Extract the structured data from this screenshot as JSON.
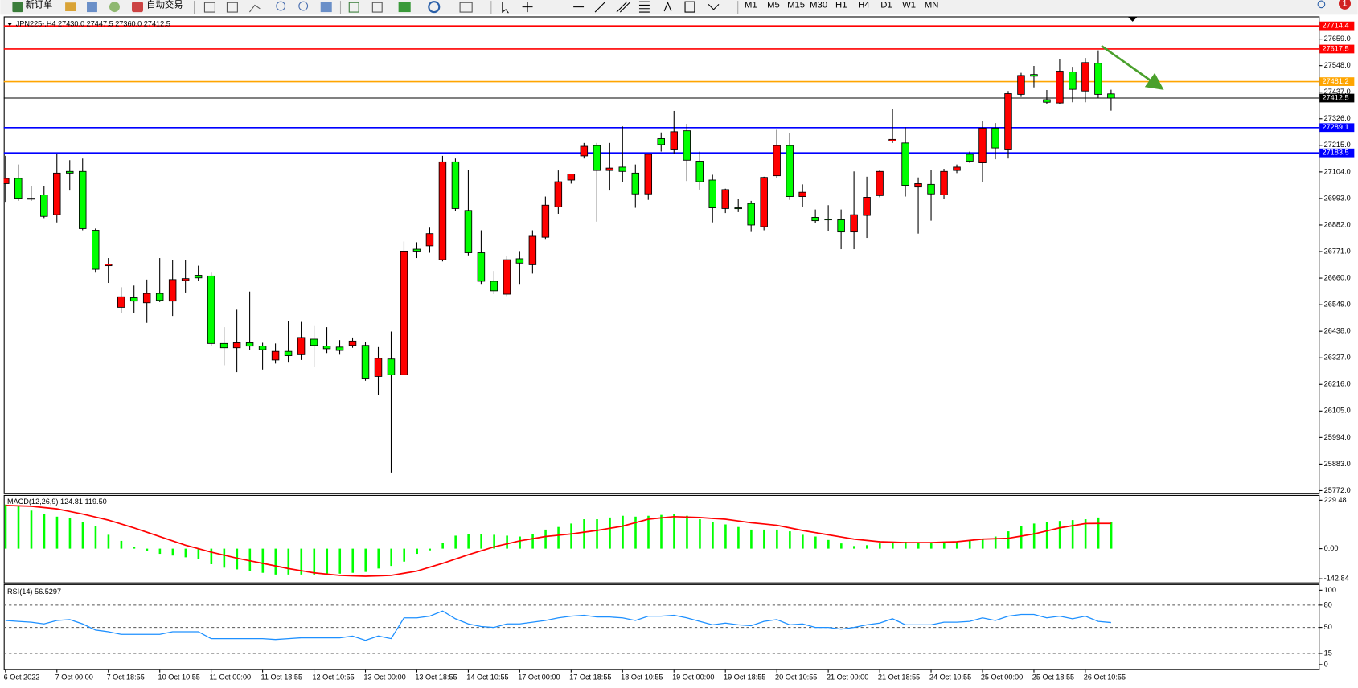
{
  "toolbar": {
    "new_order": "新订单",
    "auto_trading": "自动交易",
    "timeframes": [
      "M1",
      "M5",
      "M15",
      "M30",
      "H1",
      "H4",
      "D1",
      "W1",
      "MN"
    ],
    "badge": "1"
  },
  "chart_data": [
    {
      "type": "candlestick",
      "title": "JPN225-,H4  27430.0 27447.5 27360.0 27412.5",
      "categories": [
        "6 Oct 2022",
        null,
        null,
        null,
        "7 Oct 00:00",
        null,
        null,
        null,
        "7 Oct 18:55",
        null,
        null,
        null,
        "10 Oct 10:55",
        null,
        null,
        null,
        "11 Oct 00:00",
        null,
        null,
        null,
        "11 Oct 18:55",
        null,
        null,
        null,
        "12 Oct 10:55",
        null,
        null,
        null,
        "13 Oct 00:00",
        null,
        null,
        null,
        "13 Oct 18:55",
        null,
        null,
        null,
        "14 Oct 10:55",
        null,
        null,
        null,
        "17 Oct 00:00",
        null,
        null,
        null,
        "17 Oct 18:55",
        null,
        null,
        null,
        "18 Oct 10:55",
        null,
        null,
        null,
        "19 Oct 00:00",
        null,
        null,
        null,
        "19 Oct 18:55",
        null,
        null,
        null,
        "20 Oct 10:55",
        null,
        null,
        null,
        "21 Oct 00:00",
        null,
        null,
        null,
        "21 Oct 18:55",
        null,
        null,
        null,
        "24 Oct 10:55",
        null,
        null,
        null,
        "25 Oct 00:00",
        null,
        null,
        null,
        "25 Oct 18:55",
        null,
        null,
        null,
        "26 Oct 10:55",
        null,
        null
      ],
      "open": [
        27055,
        27077,
        26994,
        27008,
        26925,
        27106,
        27106,
        26860,
        26712,
        26538,
        26578,
        26557,
        26596,
        26564,
        26650,
        26672,
        26669,
        26387,
        26369,
        26390,
        26376,
        26318,
        26354,
        26340,
        26405,
        26376,
        26372,
        26379,
        26379,
        26249,
        26322,
        26256,
        26781,
        26795,
        26737,
        27146,
        26943,
        26766,
        26647,
        26593,
        26741,
        26716,
        26831,
        26958,
        27070,
        27171,
        27214,
        27110,
        27124,
        27099,
        27012,
        27243,
        27196,
        27276,
        27149,
        27070,
        26951,
        26954,
        26972,
        26875,
        27088,
        27214,
        27001,
        26914,
        26907,
        26904,
        26853,
        26922,
        27005,
        27233,
        27225,
        27041,
        27052,
        27008,
        27110,
        27178,
        27142,
        27287,
        27196,
        27428,
        27511,
        27406,
        27392,
        27522,
        27442,
        27558,
        27430
      ],
      "high": [
        27171,
        27135,
        27044,
        27044,
        27178,
        27153,
        27160,
        26867,
        26744,
        26622,
        26629,
        26654,
        26744,
        26737,
        26737,
        26712,
        26683,
        26455,
        26528,
        26604,
        26390,
        26387,
        26481,
        26477,
        26463,
        26455,
        26401,
        26412,
        26394,
        26372,
        26437,
        26813,
        26810,
        26871,
        27171,
        27160,
        27113,
        26860,
        26690,
        26752,
        26773,
        26860,
        27001,
        27110,
        27095,
        27225,
        27225,
        27225,
        27294,
        27135,
        27178,
        27269,
        27359,
        27305,
        27189,
        27092,
        27034,
        26990,
        26983,
        27084,
        27280,
        27265,
        27052,
        26947,
        26965,
        26947,
        27106,
        27084,
        27110,
        27366,
        27290,
        27081,
        27113,
        27117,
        27135,
        27189,
        27316,
        27308,
        27442,
        27518,
        27547,
        27446,
        27576,
        27543,
        27580,
        27612,
        27447.5
      ],
      "low": [
        26979,
        26983,
        26983,
        26911,
        26893,
        27026,
        26860,
        26683,
        26640,
        26513,
        26513,
        26473,
        26560,
        26502,
        26600,
        26647,
        26376,
        26296,
        26267,
        26358,
        26278,
        26303,
        26307,
        26318,
        26289,
        26347,
        26340,
        26369,
        26231,
        26170,
        25848,
        26256,
        26744,
        26766,
        26730,
        26940,
        26755,
        26636,
        26593,
        26585,
        26636,
        26679,
        26824,
        26929,
        27055,
        27160,
        26896,
        27026,
        27063,
        26954,
        26987,
        27189,
        27178,
        27066,
        27030,
        26893,
        26932,
        26936,
        26853,
        26860,
        27077,
        26987,
        26958,
        26889,
        26857,
        26781,
        26781,
        26828,
        26998,
        27225,
        27001,
        26846,
        26900,
        26990,
        27099,
        27142,
        27063,
        27157,
        27160,
        27417,
        27457,
        27388,
        27388,
        27395,
        27395,
        27413,
        27360
      ],
      "close": [
        27077,
        26994,
        26990,
        26918,
        27099,
        27099,
        26867,
        26697,
        26719,
        26582,
        26564,
        26596,
        26567,
        26654,
        26658,
        26661,
        26387,
        26369,
        26390,
        26376,
        26361,
        26354,
        26336,
        26412,
        26379,
        26365,
        26358,
        26397,
        26242,
        26325,
        26256,
        26773,
        26773,
        26846,
        27146,
        26951,
        26766,
        26647,
        26607,
        26737,
        26723,
        26835,
        26965,
        27063,
        27095,
        27211,
        27110,
        27120,
        27106,
        27012,
        27178,
        27218,
        27272,
        27153,
        27063,
        26954,
        27030,
        26951,
        26882,
        27081,
        27214,
        27001,
        27019,
        26900,
        26904,
        26853,
        26925,
        26998,
        27106,
        27240,
        27048,
        27055,
        27012,
        27106,
        27124,
        27149,
        27287,
        27204,
        27431,
        27507,
        27504,
        27395,
        27525,
        27449,
        27561,
        27428,
        27412.5
      ],
      "up_color": "#ff0000",
      "down_color": "#00ff00",
      "ylim": [
        25761,
        27750
      ],
      "yticks": [
        {
          "value": 27659,
          "label": "27659.0"
        },
        {
          "value": 27548,
          "label": "27548.0"
        },
        {
          "value": 27437,
          "label": "27437.0"
        },
        {
          "value": 27326,
          "label": "27326.0"
        },
        {
          "value": 27215,
          "label": "27215.0"
        },
        {
          "value": 27104,
          "label": "27104.0"
        },
        {
          "value": 26993,
          "label": "26993.0"
        },
        {
          "value": 26882,
          "label": "26882.0"
        },
        {
          "value": 26771,
          "label": "26771.0"
        },
        {
          "value": 26660,
          "label": "26660.0"
        },
        {
          "value": 26549,
          "label": "26549.0"
        },
        {
          "value": 26438,
          "label": "26438.0"
        },
        {
          "value": 26327,
          "label": "26327.0"
        },
        {
          "value": 26216,
          "label": "26216.0"
        },
        {
          "value": 26105,
          "label": "26105.0"
        },
        {
          "value": 25994,
          "label": "25994.0"
        },
        {
          "value": 25883,
          "label": "25883.0"
        },
        {
          "value": 25772,
          "label": "25772.0"
        }
      ],
      "levels": [
        {
          "value": 27714.4,
          "color": "#ff0000"
        },
        {
          "value": 27617.5,
          "color": "#ff0000"
        },
        {
          "value": 27481.2,
          "color": "#ffa500"
        },
        {
          "value": 27412.5,
          "color": "#000000"
        },
        {
          "value": 27289.1,
          "color": "#0000ff"
        },
        {
          "value": 27183.5,
          "color": "#0000ff"
        }
      ]
    },
    {
      "type": "macd",
      "title": "MACD(12,26,9) 124.81 119.50",
      "values": [
        209.0,
        200.8,
        180.3,
        163.9,
        151.6,
        143.4,
        127.0,
        106.5,
        65.6,
        36.9,
        8.2,
        -12.3,
        -24.6,
        -32.8,
        -41.0,
        -49.2,
        -73.8,
        -90.2,
        -98.4,
        -106.5,
        -114.7,
        -122.9,
        -122.9,
        -122.9,
        -122.9,
        -118.8,
        -118.8,
        -114.7,
        -110.6,
        -94.3,
        -82.0,
        -61.5,
        -24.6,
        -8.2,
        28.7,
        61.5,
        69.7,
        69.7,
        65.6,
        61.5,
        57.4,
        69.7,
        90.2,
        102.5,
        118.8,
        139.3,
        139.3,
        147.5,
        155.7,
        151.6,
        155.7,
        159.8,
        163.9,
        155.7,
        139.3,
        127.0,
        114.7,
        102.5,
        90.2,
        90.2,
        90.2,
        82.0,
        65.6,
        57.4,
        41.0,
        24.6,
        12.3,
        16.4,
        24.6,
        28.7,
        32.8,
        28.7,
        28.7,
        28.7,
        32.8,
        36.9,
        45.1,
        57.4,
        82.0,
        106.5,
        118.8,
        127.0,
        131.1,
        135.2,
        139.3,
        147.5,
        124.81
      ],
      "signal": [
        204.9,
        202.9,
        200.8,
        194.7,
        188.5,
        176.2,
        163.9,
        149.6,
        135.2,
        116.8,
        98.4,
        77.9,
        57.4,
        36.9,
        16.4,
        0,
        -16.4,
        -30.7,
        -45.1,
        -57.4,
        -69.7,
        -82.0,
        -94.3,
        -104.5,
        -114.7,
        -120.9,
        -127.0,
        -129.1,
        -131.1,
        -129.1,
        -127.0,
        -116.8,
        -106.5,
        -88.1,
        -69.7,
        -49.2,
        -28.7,
        -10.2,
        8.2,
        22.5,
        36.9,
        47.1,
        57.4,
        63.5,
        69.7,
        77.9,
        86.1,
        96.3,
        106.5,
        122.9,
        139.3,
        145.5,
        151.6,
        149.6,
        147.5,
        143.4,
        139.3,
        131.1,
        122.9,
        116.8,
        110.6,
        98.4,
        86.1,
        75.8,
        65.6,
        55.3,
        45.1,
        38.9,
        32.8,
        30.7,
        28.7,
        28.7,
        28.7,
        30.7,
        32.8,
        38.9,
        45.1,
        47.1,
        49.2,
        59.4,
        69.7,
        84.0,
        98.4,
        108.6,
        118.8,
        119.3,
        119.5
      ],
      "color": "#00ff00",
      "signal_color": "#ff0000",
      "ylim": [
        -156,
        250
      ],
      "yticks": [
        229.48,
        {
          "value": 0,
          "label": "0.00"
        },
        -142.84
      ]
    },
    {
      "type": "line",
      "title": "RSI(14) 56.5297",
      "values": [
        59.3,
        58.1,
        57.0,
        54.7,
        59.3,
        60.5,
        54.7,
        46.5,
        44.2,
        40.7,
        40.7,
        40.7,
        40.7,
        44.2,
        44.2,
        44.2,
        34.9,
        34.9,
        34.9,
        34.9,
        34.9,
        33.7,
        34.9,
        36.0,
        36.0,
        36.0,
        36.0,
        38.4,
        32.6,
        38.4,
        34.9,
        62.8,
        62.8,
        65.1,
        72.1,
        61.6,
        54.7,
        51.2,
        50.0,
        54.7,
        54.7,
        57.0,
        59.3,
        62.8,
        65.1,
        66.3,
        64.0,
        64.0,
        62.8,
        59.3,
        65.1,
        65.1,
        66.3,
        62.8,
        58.1,
        53.5,
        55.8,
        53.5,
        52.3,
        58.1,
        60.5,
        53.5,
        54.7,
        50.0,
        50.0,
        47.7,
        50.0,
        53.5,
        55.8,
        61.6,
        53.5,
        53.5,
        53.5,
        57.0,
        57.0,
        58.1,
        62.8,
        59.3,
        65.1,
        67.4,
        67.4,
        62.8,
        65.1,
        61.6,
        65.1,
        58.1,
        56.5297
      ],
      "color": "#1e90ff",
      "ylim": [
        -4.7,
        107
      ],
      "yticks": [
        100,
        80,
        50,
        15,
        0
      ],
      "levels": [
        80,
        50,
        15
      ]
    }
  ]
}
